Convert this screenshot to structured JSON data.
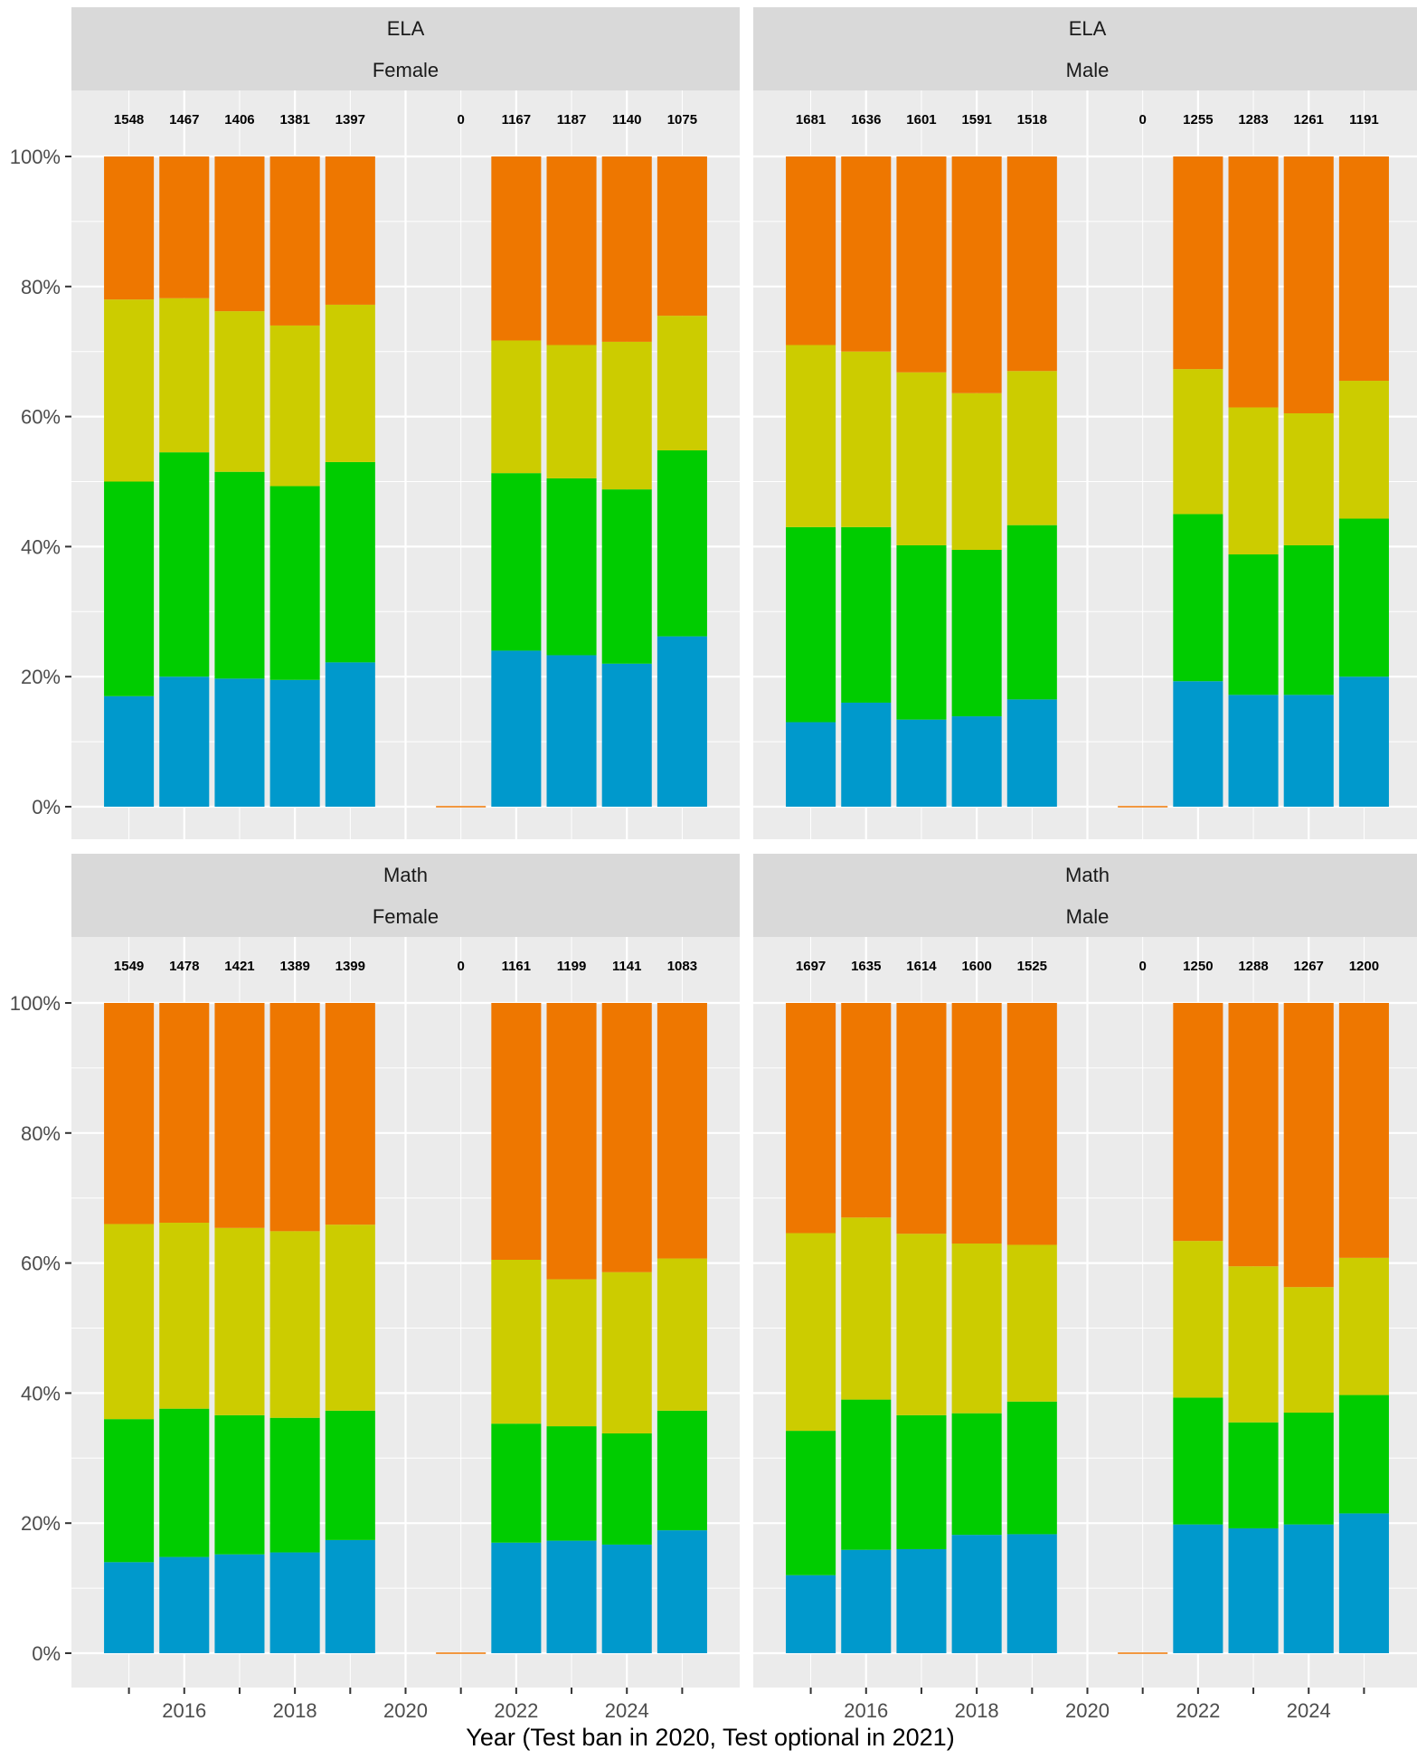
{
  "colors": {
    "level_bottom": "#0099CC",
    "level_2": "#00CC00",
    "level_3": "#CCCC00",
    "level_top": "#EE7700",
    "panel_bg": "#EBEBEB",
    "strip_bg": "#D9D9D9",
    "grid": "#FFFFFF"
  },
  "chart_data": {
    "type": "bar",
    "stacked": true,
    "xlabel": "Year (Test ban in 2020, Test optional in 2021)",
    "ylabel": "",
    "ylim": [
      0,
      1
    ],
    "y_ticks": [
      "0%",
      "20%",
      "40%",
      "60%",
      "80%",
      "100%"
    ],
    "x_ticks": [
      "2016",
      "2018",
      "2020",
      "2022",
      "2024"
    ],
    "years": [
      2015,
      2016,
      2017,
      2018,
      2019,
      2020,
      2021,
      2022,
      2023,
      2024,
      2025
    ],
    "segment_order_bottom_to_top": [
      "level_bottom",
      "level_2",
      "level_3",
      "level_top"
    ],
    "legend": "none",
    "grid": true,
    "facets": [
      {
        "subject": "ELA",
        "gender": "Female",
        "counts": [
          "1548",
          "1467",
          "1406",
          "1381",
          "1397",
          null,
          "0",
          "1167",
          "1187",
          "1140",
          "1075"
        ],
        "cumulative": [
          [
            0.17,
            0.5,
            0.78,
            1.0
          ],
          [
            0.2,
            0.545,
            0.782,
            1.0
          ],
          [
            0.197,
            0.515,
            0.762,
            1.0
          ],
          [
            0.195,
            0.493,
            0.74,
            1.0
          ],
          [
            0.222,
            0.53,
            0.772,
            1.0
          ],
          null,
          [
            0,
            0,
            0,
            0
          ],
          [
            0.24,
            0.513,
            0.717,
            1.0
          ],
          [
            0.233,
            0.505,
            0.71,
            1.0
          ],
          [
            0.22,
            0.488,
            0.715,
            1.0
          ],
          [
            0.262,
            0.548,
            0.755,
            1.0
          ]
        ]
      },
      {
        "subject": "ELA",
        "gender": "Male",
        "counts": [
          "1681",
          "1636",
          "1601",
          "1591",
          "1518",
          null,
          "0",
          "1255",
          "1283",
          "1261",
          "1191"
        ],
        "cumulative": [
          [
            0.13,
            0.43,
            0.71,
            1.0
          ],
          [
            0.16,
            0.43,
            0.7,
            1.0
          ],
          [
            0.134,
            0.402,
            0.668,
            1.0
          ],
          [
            0.139,
            0.395,
            0.636,
            1.0
          ],
          [
            0.165,
            0.433,
            0.67,
            1.0
          ],
          null,
          [
            0,
            0,
            0,
            0
          ],
          [
            0.193,
            0.45,
            0.673,
            1.0
          ],
          [
            0.172,
            0.388,
            0.614,
            1.0
          ],
          [
            0.172,
            0.402,
            0.605,
            1.0
          ],
          [
            0.2,
            0.443,
            0.655,
            1.0
          ]
        ]
      },
      {
        "subject": "Math",
        "gender": "Female",
        "counts": [
          "1549",
          "1478",
          "1421",
          "1389",
          "1399",
          null,
          "0",
          "1161",
          "1199",
          "1141",
          "1083"
        ],
        "cumulative": [
          [
            0.14,
            0.36,
            0.66,
            1.0
          ],
          [
            0.148,
            0.376,
            0.662,
            1.0
          ],
          [
            0.152,
            0.366,
            0.654,
            1.0
          ],
          [
            0.155,
            0.362,
            0.649,
            1.0
          ],
          [
            0.174,
            0.373,
            0.659,
            1.0
          ],
          null,
          [
            0,
            0,
            0,
            0
          ],
          [
            0.17,
            0.353,
            0.605,
            1.0
          ],
          [
            0.173,
            0.349,
            0.575,
            1.0
          ],
          [
            0.167,
            0.338,
            0.586,
            1.0
          ],
          [
            0.189,
            0.373,
            0.607,
            1.0
          ]
        ]
      },
      {
        "subject": "Math",
        "gender": "Male",
        "counts": [
          "1697",
          "1635",
          "1614",
          "1600",
          "1525",
          null,
          "0",
          "1250",
          "1288",
          "1267",
          "1200"
        ],
        "cumulative": [
          [
            0.12,
            0.342,
            0.646,
            1.0
          ],
          [
            0.159,
            0.39,
            0.67,
            1.0
          ],
          [
            0.16,
            0.366,
            0.645,
            1.0
          ],
          [
            0.182,
            0.369,
            0.63,
            1.0
          ],
          [
            0.183,
            0.387,
            0.628,
            1.0
          ],
          null,
          [
            0,
            0,
            0,
            0
          ],
          [
            0.198,
            0.393,
            0.634,
            1.0
          ],
          [
            0.192,
            0.355,
            0.595,
            1.0
          ],
          [
            0.198,
            0.37,
            0.563,
            1.0
          ],
          [
            0.215,
            0.397,
            0.608,
            1.0
          ]
        ]
      }
    ]
  }
}
